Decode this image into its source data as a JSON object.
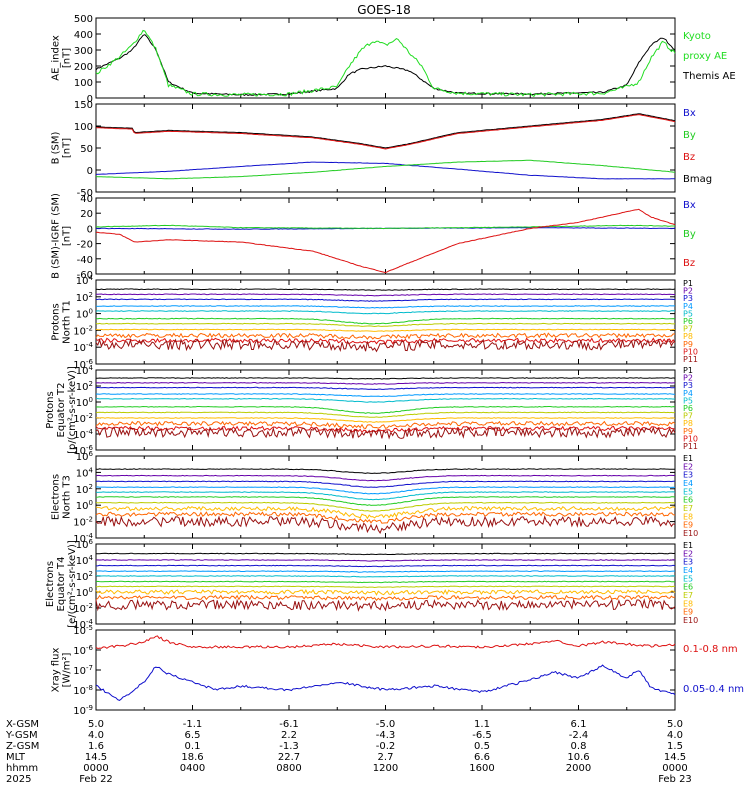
{
  "title": "GOES-18",
  "chart_data": [
    {
      "type": "line",
      "ylabel": [
        "AE_index",
        "[nT]"
      ],
      "ylim": [
        0,
        500
      ],
      "yticks": [
        "500",
        "400",
        "300",
        "200",
        "100",
        "0"
      ],
      "legend": [
        {
          "label": "Kyoto",
          "color": "#22dd22"
        },
        {
          "label": "proxy AE",
          "color": "#22dd22"
        },
        {
          "label": "Themis AE",
          "color": "#000000"
        }
      ],
      "series": [
        {
          "color": "#000000",
          "x": [
            0,
            1,
            1.5,
            2,
            2.5,
            3,
            4,
            6,
            8,
            10,
            10.5,
            11,
            12,
            13,
            14,
            15,
            18,
            21,
            22,
            22.5,
            23,
            23.5,
            24
          ],
          "y": [
            180,
            250,
            300,
            400,
            300,
            100,
            30,
            20,
            25,
            60,
            150,
            180,
            200,
            170,
            60,
            30,
            25,
            35,
            80,
            220,
            330,
            380,
            300
          ]
        },
        {
          "color": "#22dd22",
          "x": [
            0,
            1,
            1.5,
            2,
            2.5,
            3,
            4,
            6,
            8,
            10,
            10.5,
            11,
            11.5,
            12,
            12.5,
            13,
            13.5,
            14,
            15,
            18,
            21,
            22,
            22.5,
            23,
            23.5,
            24
          ],
          "y": [
            150,
            260,
            330,
            430,
            300,
            80,
            25,
            20,
            25,
            70,
            200,
            300,
            360,
            330,
            370,
            280,
            200,
            60,
            30,
            20,
            30,
            70,
            100,
            250,
            350,
            280
          ]
        }
      ]
    },
    {
      "type": "line",
      "ylabel": [
        "B (SM)",
        "[nT]"
      ],
      "ylim": [
        -50,
        150
      ],
      "yticks": [
        "150",
        "100",
        "50",
        "0",
        "-50"
      ],
      "legend": [
        {
          "label": "Bx",
          "color": "#1010cc"
        },
        {
          "label": "By",
          "color": "#22cc22"
        },
        {
          "label": "Bz",
          "color": "#dd1111"
        },
        {
          "label": "Bmag",
          "color": "#000000"
        }
      ],
      "series": [
        {
          "color": "#1010cc",
          "x": [
            0,
            3,
            6,
            9,
            12,
            15,
            18,
            21,
            24
          ],
          "y": [
            -10,
            -3,
            8,
            18,
            15,
            2,
            -12,
            -20,
            -20
          ]
        },
        {
          "color": "#22cc22",
          "x": [
            0,
            3,
            6,
            9,
            12,
            15,
            18,
            21,
            24
          ],
          "y": [
            -15,
            -20,
            -15,
            -5,
            8,
            18,
            22,
            10,
            -5
          ]
        },
        {
          "color": "#000000",
          "x": [
            0,
            1.5,
            1.6,
            3,
            6,
            9,
            11,
            12,
            13,
            15,
            18,
            21,
            22.5,
            24
          ],
          "y": [
            98,
            95,
            85,
            90,
            85,
            75,
            60,
            50,
            60,
            85,
            100,
            115,
            128,
            112
          ]
        },
        {
          "color": "#dd1111",
          "x": [
            0,
            1.5,
            1.6,
            3,
            6,
            9,
            11,
            12,
            13,
            15,
            18,
            21,
            22.5,
            24
          ],
          "y": [
            96,
            93,
            83,
            88,
            83,
            73,
            58,
            48,
            58,
            83,
            98,
            113,
            126,
            110
          ]
        }
      ]
    },
    {
      "type": "line",
      "ylabel": [
        "B (SM)-IGRF (SM)",
        "[nT]"
      ],
      "ylim": [
        -60,
        40
      ],
      "yticks": [
        "40",
        "20",
        "0",
        "-20",
        "-40",
        "-60"
      ],
      "legend": [
        {
          "label": "Bx",
          "color": "#1010cc"
        },
        {
          "label": "By",
          "color": "#22cc22"
        },
        {
          "label": "Bz",
          "color": "#dd1111"
        }
      ],
      "series": [
        {
          "color": "#1010cc",
          "x": [
            0,
            6,
            12,
            18,
            24
          ],
          "y": [
            0,
            -1,
            0,
            1,
            0
          ]
        },
        {
          "color": "#22cc22",
          "x": [
            0,
            3,
            6,
            12,
            18,
            22,
            24
          ],
          "y": [
            2,
            4,
            1,
            0,
            2,
            4,
            3
          ]
        },
        {
          "color": "#dd1111",
          "x": [
            0,
            1,
            1.6,
            3,
            6,
            9,
            11,
            12,
            13,
            15,
            18,
            20,
            22,
            22.5,
            23,
            24
          ],
          "y": [
            -5,
            -8,
            -18,
            -15,
            -18,
            -30,
            -50,
            -58,
            -45,
            -20,
            0,
            8,
            22,
            25,
            15,
            5
          ]
        }
      ]
    },
    {
      "type": "line",
      "ylabel": [
        "Protons",
        "North T1"
      ],
      "ylog": true,
      "ylim": [
        -6,
        4
      ],
      "yticks": [
        "10^4",
        "10^2",
        "10^0",
        "10^-2",
        "10^-4",
        "10^-6"
      ],
      "legend": [
        {
          "label": "P1",
          "color": "#000000"
        },
        {
          "label": "P2",
          "color": "#6600aa"
        },
        {
          "label": "P3",
          "color": "#1010cc"
        },
        {
          "label": "P4",
          "color": "#0099ff"
        },
        {
          "label": "P5",
          "color": "#00bbcc"
        },
        {
          "label": "P6",
          "color": "#22cc22"
        },
        {
          "label": "P7",
          "color": "#bbcc00"
        },
        {
          "label": "P8",
          "color": "#ffbb00"
        },
        {
          "label": "P9",
          "color": "#ff6600"
        },
        {
          "label": "P10",
          "color": "#dd1111"
        },
        {
          "label": "P11",
          "color": "#991111"
        }
      ],
      "levels": [
        2.9,
        2.3,
        1.7,
        0.9,
        0.3,
        -0.6,
        -1.2,
        -1.9,
        -2.6,
        -3.2,
        -3.7
      ],
      "dip_center": 11.5,
      "dip": [
        0.1,
        0.15,
        0.2,
        0.2,
        0.3,
        0.6,
        0.3,
        0.2,
        0.2,
        0.2,
        0.2
      ]
    },
    {
      "type": "line",
      "ylabel": [
        "Protons",
        "Equator T2",
        "[p/(cm²-s-sr-keV)]"
      ],
      "ylog": true,
      "ylim": [
        -6,
        4
      ],
      "yticks": [
        "10^4",
        "10^2",
        "10^0",
        "10^-2",
        "10^-4",
        "10^-6"
      ],
      "legend": [
        {
          "label": "P1",
          "color": "#000000"
        },
        {
          "label": "P2",
          "color": "#6600aa"
        },
        {
          "label": "P3",
          "color": "#1010cc"
        },
        {
          "label": "P4",
          "color": "#0099ff"
        },
        {
          "label": "P5",
          "color": "#00bbcc"
        },
        {
          "label": "P6",
          "color": "#22cc22"
        },
        {
          "label": "P7",
          "color": "#bbcc00"
        },
        {
          "label": "P8",
          "color": "#ffbb00"
        },
        {
          "label": "P9",
          "color": "#ff6600"
        },
        {
          "label": "P10",
          "color": "#dd1111"
        },
        {
          "label": "P11",
          "color": "#991111"
        }
      ],
      "levels": [
        3.0,
        2.4,
        1.8,
        1.0,
        0.4,
        -0.6,
        -1.3,
        -2.0,
        -2.7,
        -3.3,
        -3.8
      ],
      "dip_center": 11.5,
      "dip": [
        0.1,
        0.15,
        0.2,
        0.3,
        0.4,
        0.8,
        0.6,
        0.5,
        0.4,
        0.3,
        0.3
      ]
    },
    {
      "type": "line",
      "ylabel": [
        "Electrons",
        "North T3"
      ],
      "ylog": true,
      "ylim": [
        -4,
        6
      ],
      "yticks": [
        "10^6",
        "10^4",
        "10^2",
        "10^0",
        "10^-2",
        "10^-4"
      ],
      "legend": [
        {
          "label": "E1",
          "color": "#000000"
        },
        {
          "label": "E2",
          "color": "#6600aa"
        },
        {
          "label": "E3",
          "color": "#1010cc"
        },
        {
          "label": "E4",
          "color": "#0099ff"
        },
        {
          "label": "E5",
          "color": "#00bbcc"
        },
        {
          "label": "E6",
          "color": "#22cc22"
        },
        {
          "label": "E7",
          "color": "#bbcc00"
        },
        {
          "label": "E8",
          "color": "#ffbb00"
        },
        {
          "label": "E9",
          "color": "#ff6600"
        },
        {
          "label": "E10",
          "color": "#991111"
        }
      ],
      "levels": [
        4.4,
        3.6,
        2.9,
        2.2,
        1.6,
        1.0,
        0.3,
        -0.4,
        -1.1,
        -2.0
      ],
      "dip_center": 11.5,
      "dip": [
        0.5,
        0.6,
        0.7,
        0.8,
        0.9,
        1.0,
        1.0,
        1.0,
        0.9,
        0.8
      ]
    },
    {
      "type": "line",
      "ylabel": [
        "Electrons",
        "Equator T4",
        "[e/(cm²-s-sr-keV)]"
      ],
      "ylog": true,
      "ylim": [
        -4,
        6
      ],
      "yticks": [
        "10^6",
        "10^4",
        "10^2",
        "10^0",
        "10^-2",
        "10^-4"
      ],
      "legend": [
        {
          "label": "E1",
          "color": "#000000"
        },
        {
          "label": "E2",
          "color": "#6600aa"
        },
        {
          "label": "E3",
          "color": "#1010cc"
        },
        {
          "label": "E4",
          "color": "#0099ff"
        },
        {
          "label": "E5",
          "color": "#00bbcc"
        },
        {
          "label": "E6",
          "color": "#22cc22"
        },
        {
          "label": "E7",
          "color": "#bbcc00"
        },
        {
          "label": "E8",
          "color": "#ffbb00"
        },
        {
          "label": "E9",
          "color": "#ff6600"
        },
        {
          "label": "E10",
          "color": "#991111"
        }
      ],
      "levels": [
        4.8,
        4.0,
        3.3,
        2.6,
        2.0,
        1.3,
        0.7,
        0.0,
        -0.7,
        -1.6
      ],
      "dip_center": 11.5,
      "dip": [
        0.1,
        0.1,
        0.1,
        0.1,
        0.1,
        0.1,
        0.1,
        0.1,
        0.1,
        0.1
      ]
    },
    {
      "type": "line",
      "ylabel": [
        "Xray flux",
        "[W/m²]"
      ],
      "ylog": true,
      "ylim": [
        -9,
        -5
      ],
      "yticks": [
        "10^-5",
        "10^-6",
        "10^-7",
        "10^-8",
        "10^-9"
      ],
      "legend": [
        {
          "label": "0.1-0.8 nm",
          "color": "#dd1111"
        },
        {
          "label": "0.05-0.4 nm",
          "color": "#1010cc"
        }
      ],
      "series": [
        {
          "color": "#dd1111",
          "x": [
            0,
            1,
            2,
            2.5,
            3,
            4,
            6,
            8,
            10,
            12,
            14,
            16,
            18,
            19,
            20,
            21,
            22,
            23,
            24
          ],
          "y": [
            -5.9,
            -5.8,
            -5.6,
            -5.3,
            -5.6,
            -5.85,
            -5.85,
            -5.85,
            -5.7,
            -5.85,
            -5.8,
            -5.85,
            -5.7,
            -5.5,
            -5.8,
            -5.6,
            -5.7,
            -5.8,
            -5.75
          ]
        },
        {
          "color": "#1010cc",
          "x": [
            0,
            1,
            2,
            2.5,
            3,
            4,
            5,
            6,
            8,
            10,
            12,
            14,
            16,
            18,
            19,
            20,
            21,
            22,
            22.5,
            23,
            24
          ],
          "y": [
            -7.8,
            -8.5,
            -7.6,
            -6.8,
            -7.2,
            -7.6,
            -8.0,
            -7.8,
            -8.0,
            -7.6,
            -8.0,
            -7.8,
            -8.1,
            -7.5,
            -7.1,
            -7.4,
            -6.8,
            -7.4,
            -7.0,
            -7.9,
            -8.2
          ]
        }
      ]
    }
  ],
  "x_axis": {
    "row_labels": [
      "X-GSM",
      "Y-GSM",
      "Z-GSM",
      "MLT",
      "hhmm",
      "2025"
    ],
    "columns": [
      [
        "5.0",
        "4.0",
        "1.6",
        "14.5",
        "0000",
        "Feb 22"
      ],
      [
        "-1.1",
        "6.5",
        "0.1",
        "18.6",
        "0400",
        ""
      ],
      [
        "-6.1",
        "2.2",
        "-1.3",
        "22.7",
        "0800",
        ""
      ],
      [
        "-5.0",
        "-4.3",
        "-0.2",
        "2.7",
        "1200",
        ""
      ],
      [
        "1.1",
        "-6.5",
        "0.5",
        "6.6",
        "1600",
        ""
      ],
      [
        "6.1",
        "-2.4",
        "0.8",
        "10.6",
        "2000",
        ""
      ],
      [
        "5.0",
        "4.0",
        "1.5",
        "14.5",
        "0000",
        "Feb 23"
      ]
    ]
  }
}
